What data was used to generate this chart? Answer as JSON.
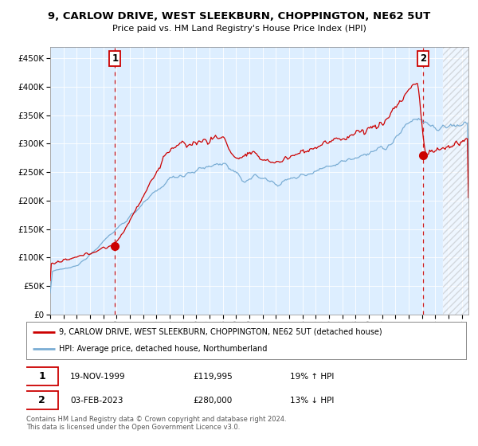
{
  "title": "9, CARLOW DRIVE, WEST SLEEKBURN, CHOPPINGTON, NE62 5UT",
  "subtitle": "Price paid vs. HM Land Registry's House Price Index (HPI)",
  "legend_label1": "9, CARLOW DRIVE, WEST SLEEKBURN, CHOPPINGTON, NE62 5UT (detached house)",
  "legend_label2": "HPI: Average price, detached house, Northumberland",
  "transaction1_date": "19-NOV-1999",
  "transaction1_price": 119995,
  "transaction1_hpi": "19% ↑ HPI",
  "transaction2_date": "03-FEB-2023",
  "transaction2_price": 280000,
  "transaction2_hpi": "13% ↓ HPI",
  "footer": "Contains HM Land Registry data © Crown copyright and database right 2024.\nThis data is licensed under the Open Government Licence v3.0.",
  "line_color_red": "#cc0000",
  "line_color_blue": "#7aadd4",
  "bg_color": "#ddeeff",
  "marker_color": "#cc0000",
  "dashed_color": "#cc0000",
  "ylim": [
    0,
    470000
  ],
  "yticks": [
    0,
    50000,
    100000,
    150000,
    200000,
    250000,
    300000,
    350000,
    400000,
    450000
  ],
  "transaction1_x": 1999.88,
  "transaction2_x": 2023.09,
  "xlim_start": 1995.0,
  "xlim_end": 2026.5,
  "hatch_start": 2024.5
}
